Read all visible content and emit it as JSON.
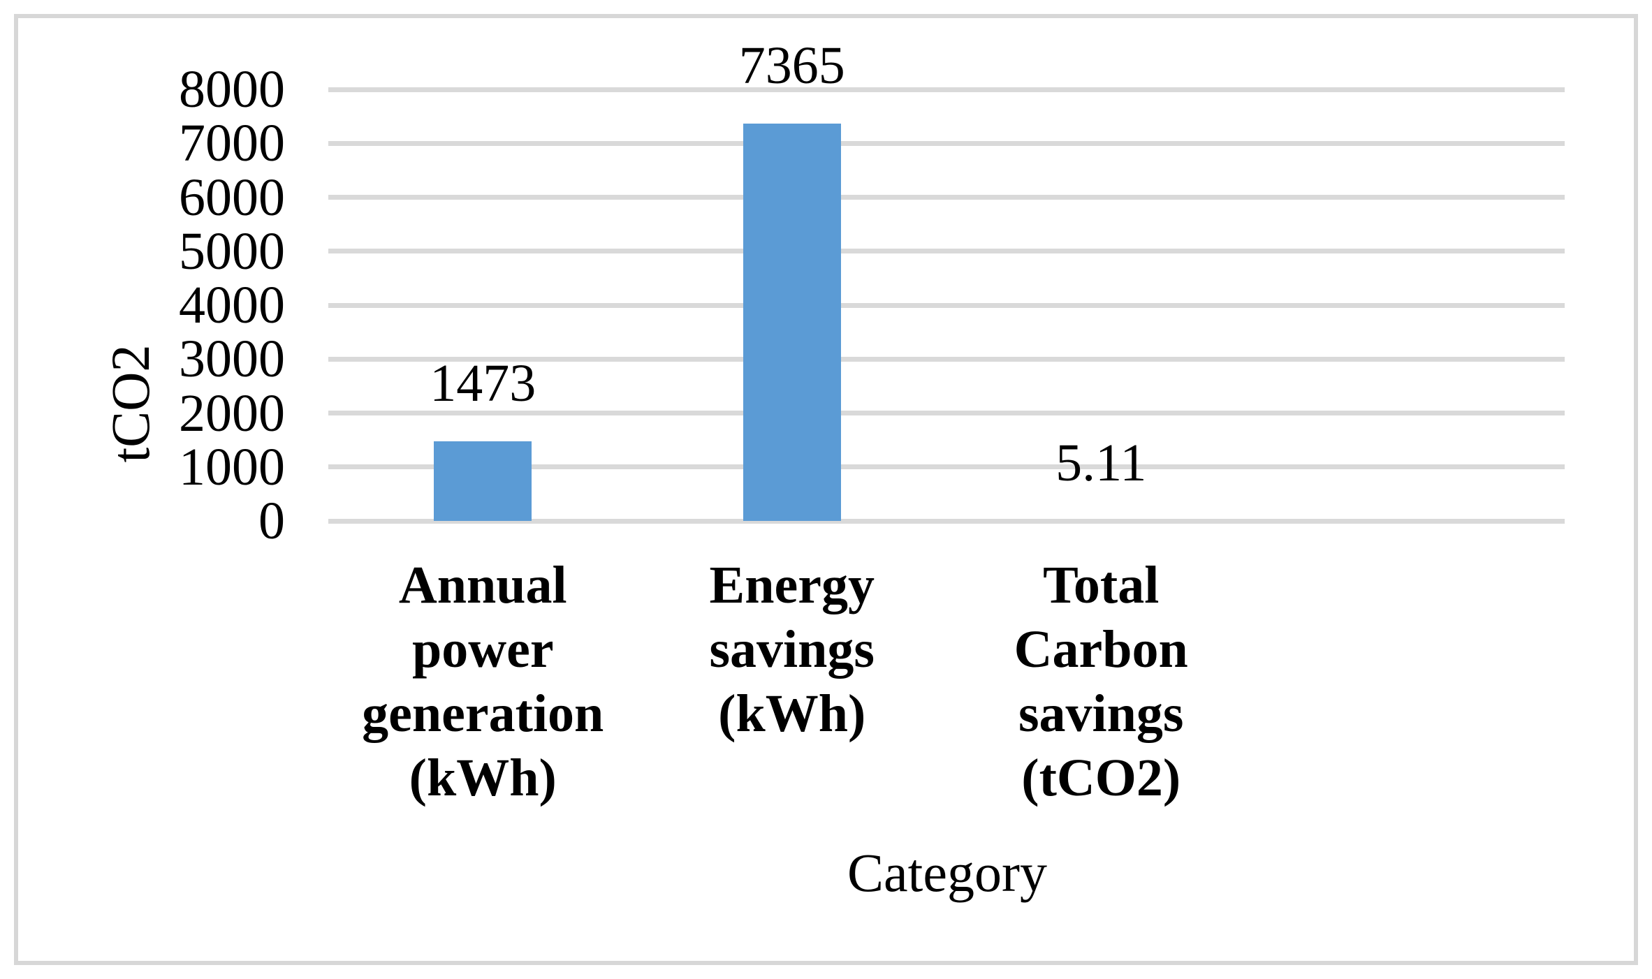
{
  "figure": {
    "background": "#ffffff",
    "border_color": "#d7d7d7"
  },
  "chart_data": {
    "type": "bar",
    "title": "",
    "categories": [
      "Annual power generation (kWh)",
      "Energy savings (kWh)",
      "Total Carbon savings (tCO2)"
    ],
    "categories_wrapped": [
      [
        "Annual",
        "power",
        "generation",
        "(kWh)"
      ],
      [
        "Energy",
        "savings",
        "(kWh)"
      ],
      [
        "Total",
        "Carbon",
        "savings",
        "(tCO2)"
      ]
    ],
    "values": [
      1473,
      7365,
      5.11
    ],
    "data_labels": [
      "1473",
      "7365",
      "5.11"
    ],
    "xlabel": "Category",
    "ylabel": "tCO2",
    "ylim": [
      0,
      8000
    ],
    "ytick_interval": 1000,
    "ytick_labels": [
      "0",
      "1000",
      "2000",
      "3000",
      "4000",
      "5000",
      "6000",
      "7000",
      "8000"
    ],
    "grid": true,
    "legend": false,
    "bar_color": "#5b9bd5",
    "gridline_color": "#d9d9d9"
  }
}
